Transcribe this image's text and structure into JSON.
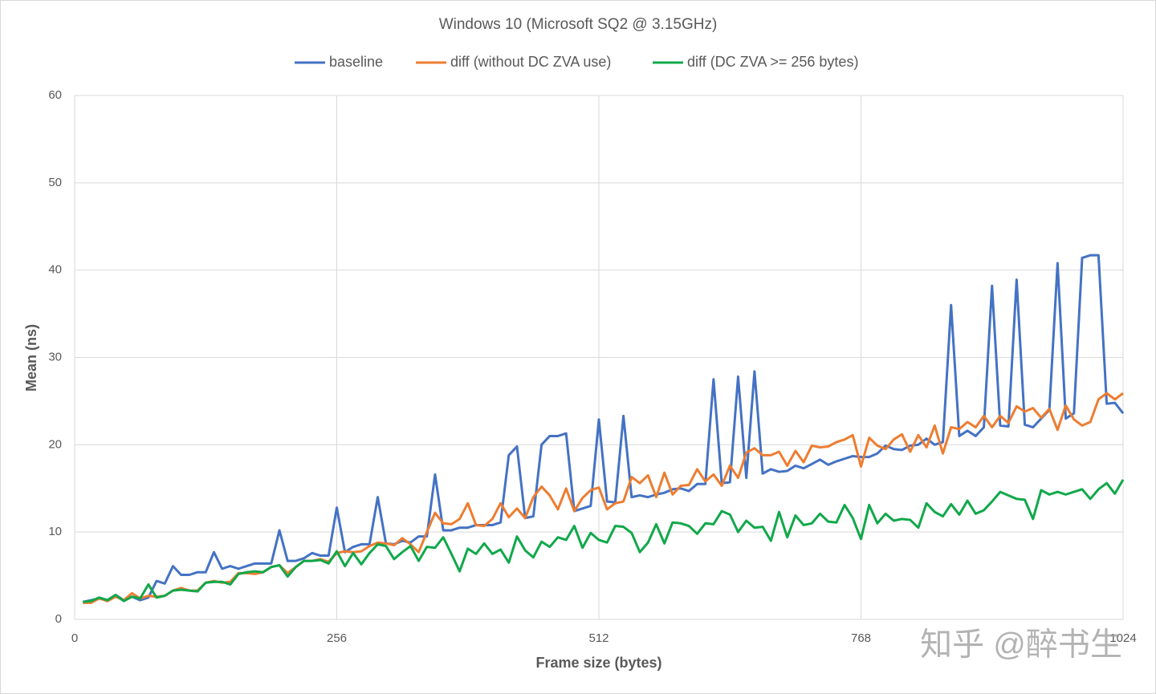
{
  "chart_data": {
    "type": "line",
    "title": "Windows 10 (Microsoft SQ2 @ 3.15GHz)",
    "x_label": "Frame size (bytes)",
    "y_label": "Mean (ns)",
    "watermark": "知乎 @醉书生",
    "xlim": [
      0,
      1024
    ],
    "xticks": [
      0,
      256,
      512,
      768,
      1024
    ],
    "ylim": [
      0,
      60
    ],
    "yticks": [
      0,
      10,
      20,
      30,
      40,
      50,
      60
    ],
    "grid": true,
    "legend": "top",
    "x": [
      8,
      16,
      24,
      32,
      40,
      48,
      56,
      64,
      72,
      80,
      88,
      96,
      104,
      112,
      120,
      128,
      136,
      144,
      152,
      160,
      168,
      176,
      184,
      192,
      200,
      208,
      216,
      224,
      232,
      240,
      248,
      256,
      264,
      272,
      280,
      288,
      296,
      304,
      312,
      320,
      328,
      336,
      344,
      352,
      360,
      368,
      376,
      384,
      392,
      400,
      408,
      416,
      424,
      432,
      440,
      448,
      456,
      464,
      472,
      480,
      488,
      496,
      504,
      512,
      520,
      528,
      536,
      544,
      552,
      560,
      568,
      576,
      584,
      592,
      600,
      608,
      616,
      624,
      632,
      640,
      648,
      656,
      664,
      672,
      680,
      688,
      696,
      704,
      712,
      720,
      728,
      736,
      744,
      752,
      760,
      768,
      776,
      784,
      792,
      800,
      808,
      816,
      824,
      832,
      840,
      848,
      856,
      864,
      872,
      880,
      888,
      896,
      904,
      912,
      920,
      928,
      936,
      944,
      952,
      960,
      968,
      976,
      984,
      992,
      1000,
      1008,
      1016,
      1024
    ],
    "series": [
      {
        "name": "baseline",
        "color": "#4472c4",
        "values": [
          2.0,
          2.2,
          2.4,
          2.2,
          2.8,
          2.2,
          2.6,
          2.2,
          2.5,
          4.4,
          4.1,
          6.1,
          5.1,
          5.1,
          5.4,
          5.4,
          7.7,
          5.8,
          6.1,
          5.8,
          6.1,
          6.4,
          6.4,
          6.4,
          10.2,
          6.7,
          6.7,
          7.0,
          7.6,
          7.3,
          7.3,
          12.8,
          7.7,
          8.3,
          8.6,
          8.6,
          14.0,
          8.7,
          8.6,
          9.0,
          8.8,
          9.5,
          9.5,
          16.6,
          10.2,
          10.2,
          10.5,
          10.5,
          10.8,
          10.8,
          10.8,
          11.1,
          18.8,
          19.8,
          11.6,
          11.8,
          20.0,
          21.0,
          21.0,
          21.3,
          12.4,
          12.7,
          13.0,
          22.9,
          13.5,
          13.4,
          23.3,
          14.0,
          14.2,
          14.0,
          14.3,
          14.5,
          14.9,
          15.0,
          14.7,
          15.5,
          15.5,
          27.5,
          15.6,
          15.7,
          27.8,
          16.2,
          28.4,
          16.7,
          17.2,
          16.9,
          17.0,
          17.6,
          17.3,
          17.8,
          18.3,
          17.7,
          18.1,
          18.4,
          18.7,
          18.6,
          18.6,
          19.0,
          19.9,
          19.5,
          19.4,
          19.9,
          20.0,
          20.7,
          20.0,
          20.3,
          36.0,
          21.0,
          21.6,
          21.0,
          22.0,
          38.2,
          22.2,
          22.1,
          38.9,
          22.3,
          22.0,
          23.0,
          24.0,
          40.8,
          23.0,
          23.6,
          41.4,
          41.7,
          41.7,
          24.7,
          24.8,
          23.6
        ]
      },
      {
        "name": "diff (without DC ZVA use)",
        "color": "#ed7d31",
        "values": [
          1.9,
          1.9,
          2.4,
          2.1,
          2.6,
          2.2,
          3.0,
          2.4,
          2.7,
          2.6,
          2.7,
          3.3,
          3.6,
          3.3,
          3.3,
          4.2,
          4.4,
          4.2,
          4.3,
          5.3,
          5.3,
          5.2,
          5.4,
          6.0,
          6.2,
          5.3,
          6.0,
          6.7,
          6.7,
          6.9,
          6.6,
          7.6,
          7.8,
          7.7,
          7.8,
          8.4,
          8.8,
          8.7,
          8.5,
          9.3,
          8.6,
          7.7,
          10.0,
          12.2,
          11.0,
          10.9,
          11.5,
          13.3,
          10.8,
          10.7,
          11.5,
          13.3,
          11.7,
          12.7,
          11.6,
          14.0,
          15.2,
          14.2,
          12.6,
          15.0,
          12.4,
          13.9,
          14.8,
          15.1,
          12.6,
          13.3,
          13.5,
          16.3,
          15.6,
          16.5,
          14.0,
          16.8,
          14.3,
          15.3,
          15.4,
          17.2,
          15.8,
          16.6,
          15.3,
          17.6,
          16.2,
          19.1,
          19.6,
          18.8,
          18.8,
          19.2,
          17.6,
          19.3,
          18.0,
          19.9,
          19.7,
          19.8,
          20.3,
          20.6,
          21.1,
          17.5,
          20.8,
          19.9,
          19.5,
          20.6,
          21.2,
          19.2,
          21.1,
          19.7,
          22.2,
          19.0,
          22.0,
          21.8,
          22.6,
          22.0,
          23.3,
          22.0,
          23.3,
          22.5,
          24.4,
          23.8,
          24.2,
          23.1,
          24.1,
          21.7,
          24.5,
          22.9,
          22.2,
          22.6,
          25.2,
          25.9,
          25.2,
          25.9
        ]
      },
      {
        "name": "diff (DC ZVA >= 256 bytes)",
        "color": "#11a84a",
        "values": [
          2.0,
          2.1,
          2.5,
          2.2,
          2.8,
          2.1,
          2.6,
          2.4,
          4.0,
          2.5,
          2.7,
          3.3,
          3.4,
          3.3,
          3.2,
          4.2,
          4.3,
          4.3,
          4.0,
          5.2,
          5.4,
          5.5,
          5.4,
          6.0,
          6.2,
          4.9,
          6.0,
          6.7,
          6.7,
          6.8,
          6.4,
          7.8,
          6.1,
          7.6,
          6.3,
          7.6,
          8.6,
          8.4,
          6.9,
          7.7,
          8.4,
          6.7,
          8.3,
          8.2,
          9.4,
          7.5,
          5.5,
          8.1,
          7.5,
          8.7,
          7.5,
          8.0,
          6.5,
          9.5,
          7.9,
          7.1,
          8.9,
          8.3,
          9.4,
          9.1,
          10.7,
          8.2,
          9.9,
          9.1,
          8.8,
          10.7,
          10.6,
          9.9,
          7.7,
          8.8,
          10.9,
          8.7,
          11.1,
          11.0,
          10.7,
          9.8,
          11.0,
          10.9,
          12.4,
          12.0,
          10.0,
          11.3,
          10.5,
          10.6,
          9.0,
          12.3,
          9.4,
          11.9,
          10.8,
          11.0,
          12.1,
          11.2,
          11.1,
          13.1,
          11.6,
          9.2,
          13.1,
          11.0,
          12.1,
          11.3,
          11.5,
          11.4,
          10.5,
          13.3,
          12.3,
          11.8,
          13.2,
          12.0,
          13.6,
          12.1,
          12.5,
          13.5,
          14.6,
          14.2,
          13.8,
          13.7,
          11.5,
          14.8,
          14.3,
          14.6,
          14.3,
          14.6,
          14.9,
          13.8,
          14.9,
          15.6,
          14.4,
          16.0
        ]
      }
    ]
  }
}
